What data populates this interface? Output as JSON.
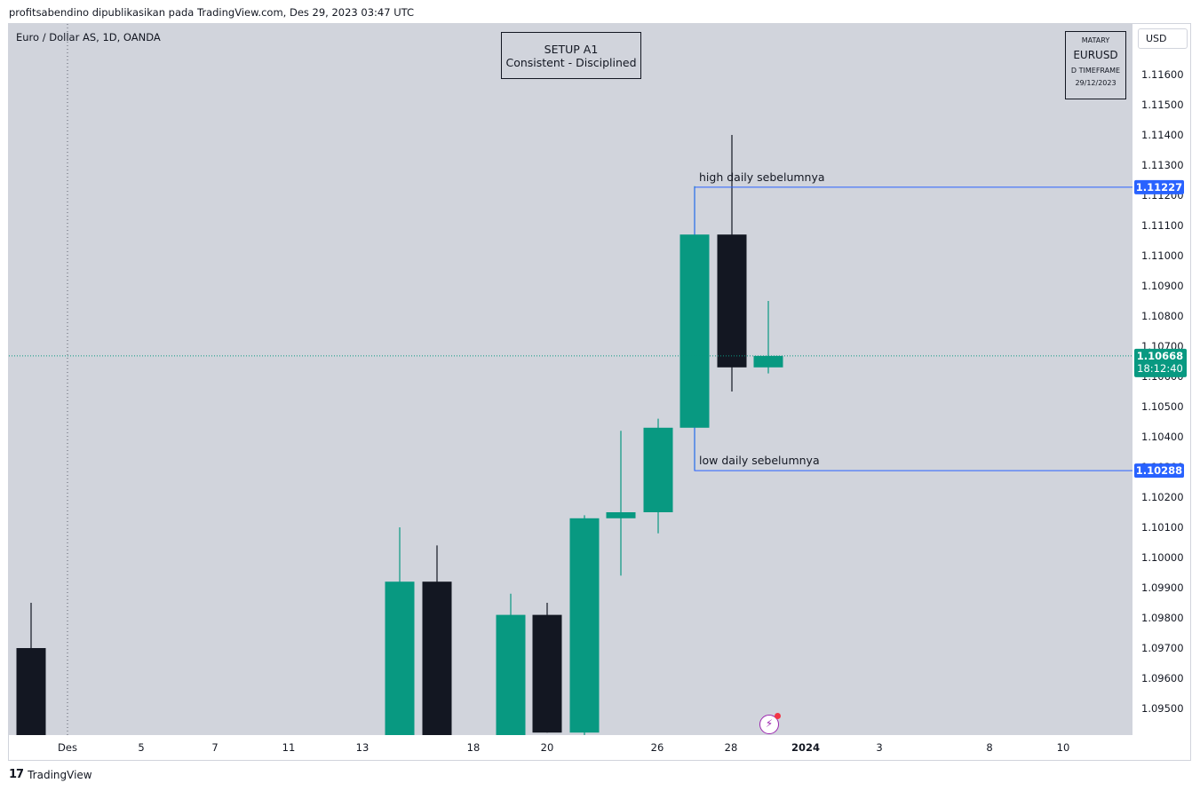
{
  "header": {
    "published_line": "profitsabendino dipublikasikan pada TradingView.com, Des 29, 2023 03:47 UTC"
  },
  "symbol_line": "Euro / Dollar AS, 1D, OANDA",
  "setup_box": {
    "line1": "SETUP A1",
    "line2": "Consistent - Disciplined"
  },
  "matary_box": {
    "line1": "MATARY",
    "line2": "EURUSD",
    "line3": "D TIMEFRAME",
    "line4": "29/12/2023"
  },
  "currency_button": "USD",
  "footer": {
    "logo": "17",
    "brand": "TradingView"
  },
  "colors": {
    "up": "#089981",
    "down": "#131722",
    "level_line": "#2962ff",
    "background": "#d1d4dc"
  },
  "icons": {
    "alert": "lightning-alert-icon"
  },
  "chart_data": {
    "type": "candlestick",
    "ylim": [
      1.0943,
      1.1166
    ],
    "y_ticks": [
      "1.11600",
      "1.11500",
      "1.11400",
      "1.11300",
      "1.11200",
      "1.11100",
      "1.11000",
      "1.10900",
      "1.10800",
      "1.10700",
      "1.10600",
      "1.10500",
      "1.10400",
      "1.10300",
      "1.10200",
      "1.10100",
      "1.10000",
      "1.09900",
      "1.09800",
      "1.09700",
      "1.09600",
      "1.09500"
    ],
    "x_ticks": [
      "Des",
      "5",
      "7",
      "11",
      "13",
      "18",
      "20",
      "26",
      "28",
      "2024",
      "3",
      "8",
      "10"
    ],
    "candles": [
      {
        "date": "2023-11-30",
        "open": 1.097,
        "high": 1.0985,
        "low": 1.094,
        "close": 1.094
      },
      {
        "date": "2023-12-13",
        "open": 1.094,
        "high": 1.101,
        "low": 1.094,
        "close": 1.0992
      },
      {
        "date": "2023-12-14",
        "open": 1.0992,
        "high": 1.1004,
        "low": 1.094,
        "close": 1.094
      },
      {
        "date": "2023-12-18",
        "open": 1.094,
        "high": 1.0988,
        "low": 1.094,
        "close": 1.0981
      },
      {
        "date": "2023-12-19",
        "open": 1.0981,
        "high": 1.0985,
        "low": 1.0942,
        "close": 1.0942
      },
      {
        "date": "2023-12-20",
        "open": 1.0942,
        "high": 1.1014,
        "low": 1.0941,
        "close": 1.1013
      },
      {
        "date": "2023-12-21",
        "open": 1.1013,
        "high": 1.1042,
        "low": 1.0994,
        "close": 1.1015
      },
      {
        "date": "2023-12-22",
        "open": 1.1015,
        "high": 1.1046,
        "low": 1.1008,
        "close": 1.1043
      },
      {
        "date": "2023-12-26",
        "open": 1.1043,
        "high": 1.1123,
        "low": 1.1029,
        "close": 1.1107
      },
      {
        "date": "2023-12-27",
        "open": 1.1107,
        "high": 1.114,
        "low": 1.1055,
        "close": 1.1063
      },
      {
        "date": "2023-12-28",
        "open": 1.1063,
        "high": 1.1085,
        "low": 1.1061,
        "close": 1.10668
      }
    ],
    "levels": [
      {
        "label": "high daily sebelumnya",
        "value": "1.11227"
      },
      {
        "label": "low daily sebelumnya",
        "value": "1.10288"
      }
    ],
    "last_price": {
      "value": "1.10668",
      "countdown": "18:12:40"
    }
  }
}
